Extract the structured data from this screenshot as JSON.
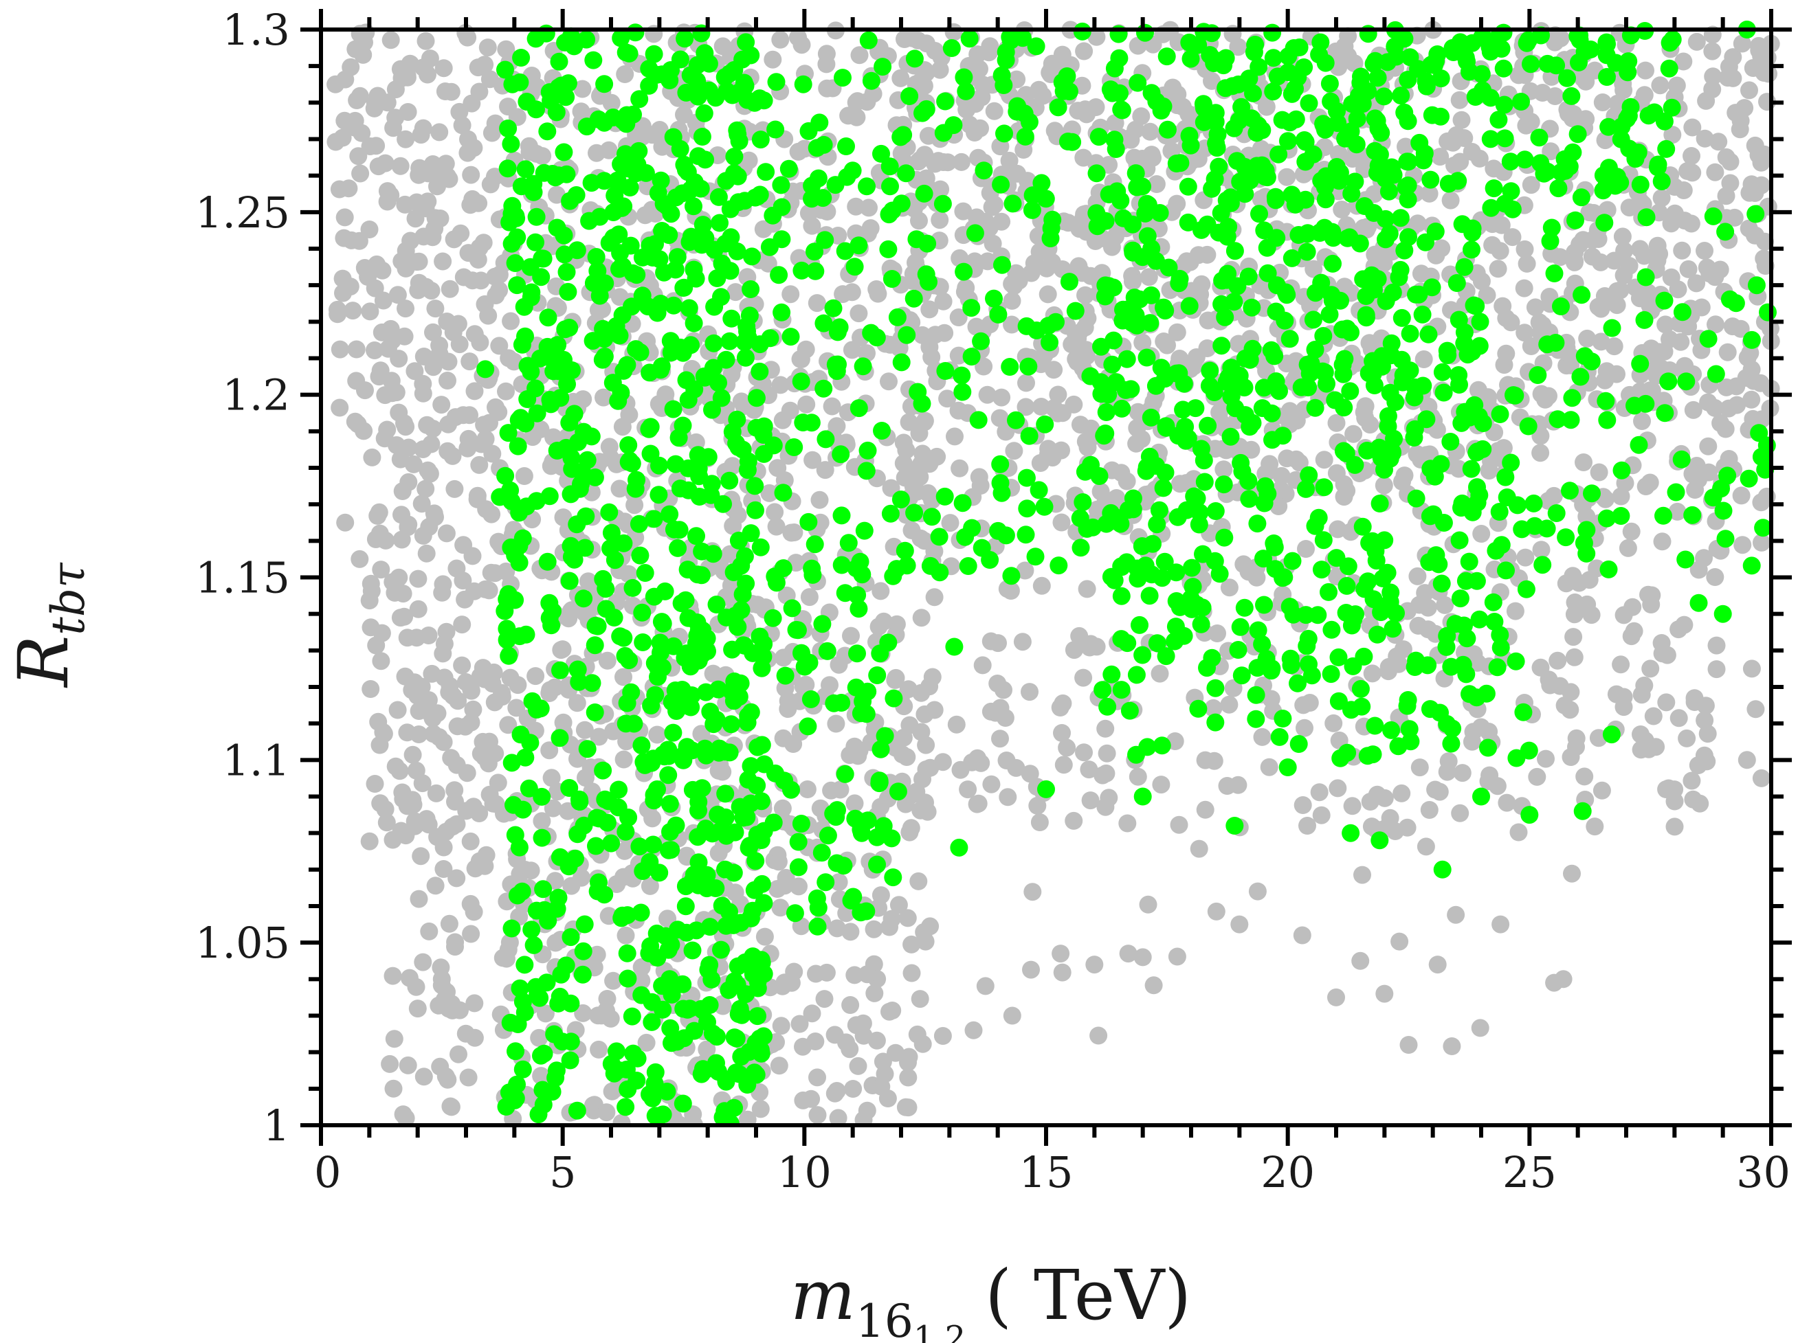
{
  "chart_data": {
    "type": "scatter",
    "title": "",
    "xlabel": {
      "main": "m",
      "sub": "16",
      "subsub": "1,2",
      "unit": "( TeV)"
    },
    "ylabel": {
      "main": "R",
      "sub": "tbτ"
    },
    "xlim": [
      0,
      30
    ],
    "ylim": [
      1.0,
      1.3
    ],
    "grid": false,
    "legend": "none",
    "x_ticks": [
      0,
      5,
      10,
      15,
      20,
      25,
      30
    ],
    "x_tick_labels": [
      "0",
      "5",
      "10",
      "15",
      "20",
      "25",
      "30"
    ],
    "y_ticks": [
      1.0,
      1.05,
      1.1,
      1.15,
      1.2,
      1.25,
      1.3
    ],
    "y_tick_labels": [
      "1",
      "1.05",
      "1.1",
      "1.15",
      "1.2",
      "1.25",
      "1.3"
    ],
    "series": [
      {
        "color": "#bebebe",
        "point_density_regions": [
          {
            "x": [
              0.3,
              3.7
            ],
            "y": [
              1.19,
              1.3
            ],
            "density": 1.0
          },
          {
            "x": [
              1.0,
              3.7
            ],
            "y": [
              1.07,
              1.19
            ],
            "density": 1.0
          },
          {
            "x": [
              1.4,
              3.2
            ],
            "y": [
              1.0,
              1.07
            ],
            "density": 0.55
          },
          {
            "x": [
              3.7,
              12.5
            ],
            "y": [
              1.0,
              1.3
            ],
            "density": 0.7
          },
          {
            "x": [
              12.0,
              30.0
            ],
            "y": [
              1.17,
              1.3
            ],
            "density": 0.9
          },
          {
            "x": [
              12.5,
              29.0
            ],
            "y": [
              1.08,
              1.17
            ],
            "density": 0.4
          },
          {
            "x": [
              12.5,
              26.0
            ],
            "y": [
              1.02,
              1.08
            ],
            "density": 0.05
          },
          {
            "x": [
              26.0,
              30.0
            ],
            "y": [
              1.09,
              1.17
            ],
            "density": 0.1
          }
        ],
        "representative_points": [
          [
            0.3,
            1.285
          ],
          [
            0.5,
            1.165
          ],
          [
            0.8,
            1.155
          ],
          [
            1.5,
            1.01
          ],
          [
            1.7,
            1.003
          ],
          [
            2.5,
            1.04
          ],
          [
            2.7,
            1.005
          ],
          [
            13.5,
            1.026
          ],
          [
            14.3,
            1.03
          ],
          [
            15.3,
            1.047
          ],
          [
            16.0,
            1.044
          ],
          [
            16.7,
            1.047
          ],
          [
            17.0,
            1.046
          ],
          [
            19.0,
            1.055
          ],
          [
            20.3,
            1.052
          ],
          [
            21.0,
            1.035
          ],
          [
            21.5,
            1.045
          ],
          [
            22.0,
            1.036
          ],
          [
            22.5,
            1.022
          ],
          [
            23.1,
            1.044
          ],
          [
            24.4,
            1.055
          ],
          [
            25.7,
            1.04
          ],
          [
            26.8,
            1.118
          ],
          [
            27.5,
            1.125
          ],
          [
            28.2,
            1.137
          ],
          [
            29.5,
            1.1
          ],
          [
            29.8,
            1.095
          ],
          [
            29.6,
            1.125
          ],
          [
            10.7,
            1.002
          ],
          [
            11.3,
            1.004
          ]
        ]
      },
      {
        "color": "#00ff00",
        "point_density_regions": [
          {
            "x": [
              3.8,
              5.2
            ],
            "y": [
              1.0,
              1.3
            ],
            "density": 0.8
          },
          {
            "x": [
              5.2,
              6.0
            ],
            "y": [
              1.04,
              1.3
            ],
            "density": 0.6
          },
          {
            "x": [
              6.0,
              9.2
            ],
            "y": [
              1.0,
              1.3
            ],
            "density": 1.0
          },
          {
            "x": [
              9.2,
              12.0
            ],
            "y": [
              1.05,
              1.3
            ],
            "density": 0.4
          },
          {
            "x": [
              12.0,
              16.0
            ],
            "y": [
              1.15,
              1.3
            ],
            "density": 0.35
          },
          {
            "x": [
              16.0,
              24.0
            ],
            "y": [
              1.2,
              1.3
            ],
            "density": 0.9
          },
          {
            "x": [
              16.0,
              25.0
            ],
            "y": [
              1.1,
              1.2
            ],
            "density": 0.6
          },
          {
            "x": [
              24.0,
              28.0
            ],
            "y": [
              1.25,
              1.3
            ],
            "density": 0.8
          },
          {
            "x": [
              25.0,
              30.0
            ],
            "y": [
              1.15,
              1.25
            ],
            "density": 0.25
          }
        ],
        "representative_points": [
          [
            3.4,
            1.207
          ],
          [
            3.7,
            1.172
          ],
          [
            4.5,
            1.003
          ],
          [
            5.3,
            1.004
          ],
          [
            6.3,
            1.005
          ],
          [
            13.2,
            1.076
          ],
          [
            13.1,
            1.131
          ],
          [
            15.0,
            1.092
          ],
          [
            17.0,
            1.09
          ],
          [
            18.9,
            1.082
          ],
          [
            20.0,
            1.098
          ],
          [
            21.3,
            1.08
          ],
          [
            21.9,
            1.078
          ],
          [
            23.2,
            1.07
          ],
          [
            24.0,
            1.09
          ],
          [
            25.0,
            1.085
          ],
          [
            26.1,
            1.086
          ],
          [
            26.7,
            1.107
          ],
          [
            28.5,
            1.143
          ],
          [
            29.0,
            1.14
          ],
          [
            29.8,
            1.183
          ],
          [
            29.7,
            1.23
          ],
          [
            29.6,
            1.215
          ],
          [
            29.5,
            1.3
          ],
          [
            27.8,
            1.195
          ]
        ]
      }
    ]
  }
}
